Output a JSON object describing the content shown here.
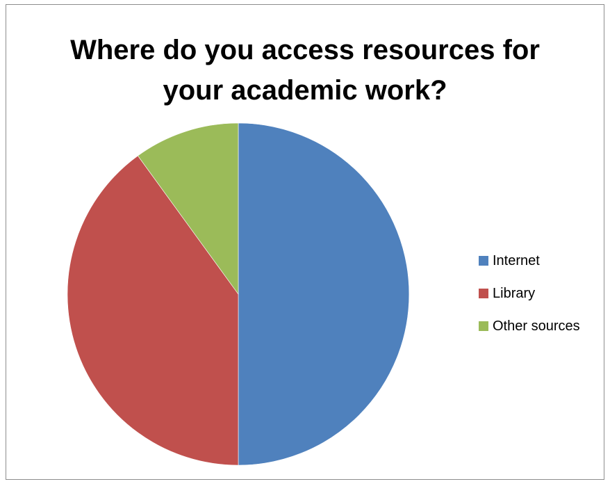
{
  "chart_data": {
    "type": "pie",
    "title": "Where do you access resources for your academic work?",
    "title_lines": [
      "Where do you access resources for",
      "your academic work?"
    ],
    "categories": [
      "Internet",
      "Library",
      "Other sources"
    ],
    "values": [
      50,
      40,
      10
    ],
    "colors": [
      "#4F81BD",
      "#C0504D",
      "#9BBB59"
    ],
    "start_angle": "12 o'clock, clockwise",
    "legend_position": "right"
  }
}
